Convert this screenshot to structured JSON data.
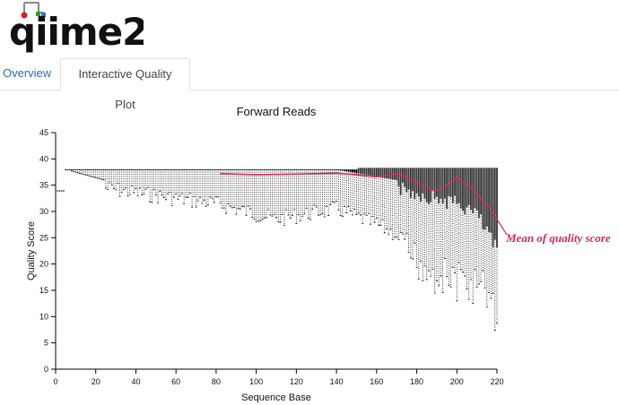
{
  "app": {
    "logo_text": "qiime2",
    "logo_colors": [
      "#888888",
      "#d71f27",
      "#2ca02c",
      "#2f6fde"
    ]
  },
  "tabs": [
    {
      "label": "Overview",
      "active": false
    },
    {
      "label": "Interactive Quality Plot",
      "active": true
    }
  ],
  "chart_data": {
    "type": "box",
    "title": "Forward Reads",
    "xlabel": "Sequence Base",
    "ylabel": "Quality Score",
    "xlim": [
      0,
      220
    ],
    "ylim": [
      0,
      45
    ],
    "xticks": [
      0,
      20,
      40,
      60,
      80,
      100,
      120,
      140,
      160,
      180,
      200,
      220
    ],
    "yticks": [
      0,
      5,
      10,
      15,
      20,
      25,
      30,
      35,
      40,
      45
    ],
    "boxes": {
      "positions_start": 1,
      "positions_end": 220,
      "median": 38,
      "q1_profile": [
        [
          1,
          34
        ],
        [
          5,
          38
        ],
        [
          140,
          38
        ],
        [
          170,
          36
        ],
        [
          180,
          35
        ],
        [
          190,
          34
        ],
        [
          200,
          33
        ],
        [
          210,
          31
        ],
        [
          220,
          24
        ]
      ],
      "lower_whisker_profile": [
        [
          1,
          34
        ],
        [
          5,
          38
        ],
        [
          24,
          36
        ],
        [
          40,
          35
        ],
        [
          80,
          33
        ],
        [
          110,
          30
        ],
        [
          140,
          32
        ],
        [
          160,
          29
        ],
        [
          175,
          26
        ],
        [
          190,
          22
        ],
        [
          205,
          20
        ],
        [
          215,
          19
        ],
        [
          220,
          13
        ]
      ]
    },
    "mean_line": {
      "name": "Mean of quality score",
      "color": "#d22a5c",
      "points": [
        [
          82,
          37.2
        ],
        [
          100,
          37.0
        ],
        [
          120,
          37.1
        ],
        [
          140,
          37.3
        ],
        [
          150,
          37.0
        ],
        [
          160,
          36.6
        ],
        [
          170,
          37.2
        ],
        [
          175,
          36.5
        ],
        [
          180,
          35.5
        ],
        [
          185,
          34.5
        ],
        [
          190,
          34.0
        ],
        [
          195,
          35.0
        ],
        [
          200,
          36.5
        ],
        [
          203,
          35.6
        ],
        [
          207,
          34.5
        ],
        [
          212,
          32.3
        ],
        [
          217,
          30.5
        ],
        [
          220,
          28.5
        ]
      ]
    },
    "annotation": "Mean of quality score",
    "grid": false,
    "legend": "none"
  }
}
